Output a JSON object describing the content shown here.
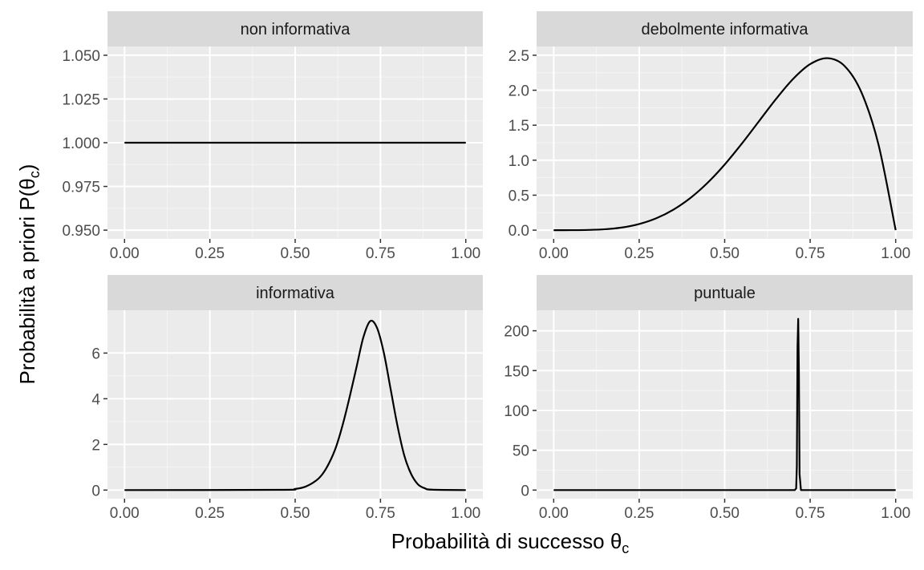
{
  "chart_data": {
    "type": "line",
    "xlabel": "Probabilità di successo θc",
    "ylabel": "Probabilità a priori P(θc)",
    "xlabel_parts": {
      "text": "Probabilità di successo ",
      "symbol": "θ",
      "sub": "c"
    },
    "ylabel_parts": {
      "text": "Probabilità a priori P(",
      "symbol": "θ",
      "sub": "c",
      "close": ")"
    },
    "grid": true,
    "line_color": "#000000",
    "panel_bg": "#ebebeb",
    "strip_bg": "#d9d9d9",
    "panels": [
      {
        "title": "non informativa",
        "distribution": "Beta(1, 1)",
        "xlim": [
          0,
          1
        ],
        "ylim": [
          0.95,
          1.05
        ],
        "xticks": [
          0,
          0.25,
          0.5,
          0.75,
          1
        ],
        "xtick_labels": [
          "0.00",
          "0.25",
          "0.50",
          "0.75",
          "1.00"
        ],
        "yticks": [
          0.95,
          0.975,
          1.0,
          1.025,
          1.05
        ],
        "ytick_labels": [
          "0.950",
          "0.975",
          "1.000",
          "1.025",
          "1.050"
        ],
        "x": [
          0,
          0.1,
          0.2,
          0.3,
          0.4,
          0.5,
          0.6,
          0.7,
          0.8,
          0.9,
          1.0
        ],
        "y": [
          1,
          1,
          1,
          1,
          1,
          1,
          1,
          1,
          1,
          1,
          1
        ]
      },
      {
        "title": "debolmente informativa",
        "distribution": "Beta(5, 2)",
        "xlim": [
          0,
          1
        ],
        "ylim": [
          0,
          2.5
        ],
        "xticks": [
          0,
          0.25,
          0.5,
          0.75,
          1
        ],
        "xtick_labels": [
          "0.00",
          "0.25",
          "0.50",
          "0.75",
          "1.00"
        ],
        "yticks": [
          0,
          0.5,
          1.0,
          1.5,
          2.0,
          2.5
        ],
        "ytick_labels": [
          "0.0",
          "0.5",
          "1.0",
          "1.5",
          "2.0",
          "2.5"
        ],
        "x": [
          0,
          0.05,
          0.1,
          0.15,
          0.2,
          0.25,
          0.3,
          0.35,
          0.4,
          0.45,
          0.5,
          0.55,
          0.6,
          0.65,
          0.7,
          0.75,
          0.8,
          0.85,
          0.9,
          0.95,
          1.0
        ],
        "y": [
          0,
          0.0002,
          0.003,
          0.013,
          0.038,
          0.088,
          0.17,
          0.293,
          0.461,
          0.677,
          0.938,
          1.236,
          1.555,
          1.874,
          2.161,
          2.373,
          2.458,
          2.349,
          1.968,
          1.219,
          0
        ]
      },
      {
        "title": "informativa",
        "distribution": "Beta(36, 15)",
        "xlim": [
          0,
          1
        ],
        "ylim": [
          0,
          7.5
        ],
        "xticks": [
          0,
          0.25,
          0.5,
          0.75,
          1
        ],
        "xtick_labels": [
          "0.00",
          "0.25",
          "0.50",
          "0.75",
          "1.00"
        ],
        "yticks": [
          0,
          2,
          4,
          6
        ],
        "ytick_labels": [
          "0",
          "2",
          "4",
          "6"
        ],
        "x": [
          0,
          0.45,
          0.5,
          0.53,
          0.56,
          0.58,
          0.6,
          0.62,
          0.64,
          0.66,
          0.68,
          0.7,
          0.72,
          0.74,
          0.76,
          0.78,
          0.8,
          0.82,
          0.84,
          0.86,
          0.88,
          0.9,
          1.0
        ],
        "y": [
          0,
          0.01,
          0.05,
          0.15,
          0.4,
          0.7,
          1.2,
          1.9,
          2.9,
          4.1,
          5.4,
          6.7,
          7.4,
          7.1,
          6.0,
          4.4,
          2.8,
          1.5,
          0.7,
          0.25,
          0.08,
          0.02,
          0
        ]
      },
      {
        "title": "puntuale",
        "distribution": "≈ point mass at 0.714",
        "xlim": [
          0,
          1
        ],
        "ylim": [
          0,
          215
        ],
        "xticks": [
          0,
          0.25,
          0.5,
          0.75,
          1
        ],
        "xtick_labels": [
          "0.00",
          "0.25",
          "0.50",
          "0.75",
          "1.00"
        ],
        "yticks": [
          0,
          50,
          100,
          150,
          200
        ],
        "ytick_labels": [
          "0",
          "50",
          "100",
          "150",
          "200"
        ],
        "x": [
          0,
          0.705,
          0.709,
          0.711,
          0.713,
          0.715,
          0.717,
          0.719,
          0.723,
          1.0
        ],
        "y": [
          0,
          0,
          2,
          30,
          180,
          215,
          150,
          20,
          0,
          0
        ]
      }
    ]
  }
}
